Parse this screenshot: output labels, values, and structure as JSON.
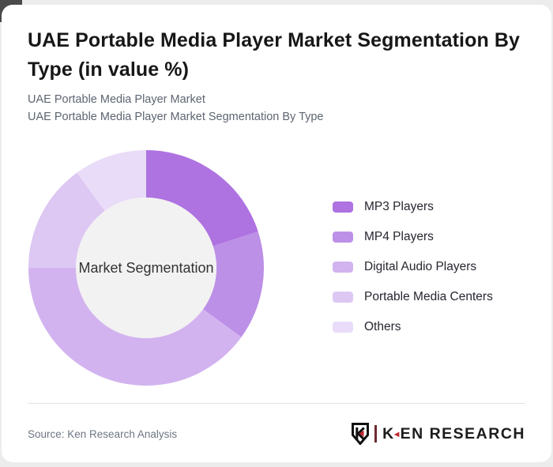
{
  "header": {
    "title": "UAE Portable Media Player Market Segmentation By Type (in value %)",
    "subtitle_line1": "UAE Portable Media Player Market",
    "subtitle_line2": "UAE Portable Media Player Market Segmentation By Type"
  },
  "chart_data": {
    "type": "pie",
    "subtype": "donut",
    "title": "UAE Portable Media Player Market Segmentation By Type (in value %)",
    "center_label": "Market Segmentation",
    "categories": [
      "MP3 Players",
      "MP4 Players",
      "Digital Audio Players",
      "Portable Media Centers",
      "Others"
    ],
    "values": [
      20,
      15,
      40,
      15,
      10
    ],
    "unit": "%",
    "colors": [
      "#ae72e1",
      "#bd90e7",
      "#d2b3ef",
      "#ddc7f3",
      "#e9dcf8"
    ],
    "center_circle_color": "#f2f2f2",
    "center_label_color": "#333333",
    "start_angle_deg": 0,
    "direction": "clockwise",
    "inner_radius_ratio": 0.6,
    "legend_position": "right"
  },
  "footer": {
    "source": "Source: Ken Research Analysis"
  },
  "branding": {
    "logo_shield_letter": "K",
    "logo_full_text": "KEN RESEARCH",
    "logo_text_k": "K",
    "logo_text_rest": "EN RESEARCH",
    "accent_color": "#c0272d",
    "separator_color": "#6d2b2f",
    "logo_text_color": "#1c1c1c"
  }
}
